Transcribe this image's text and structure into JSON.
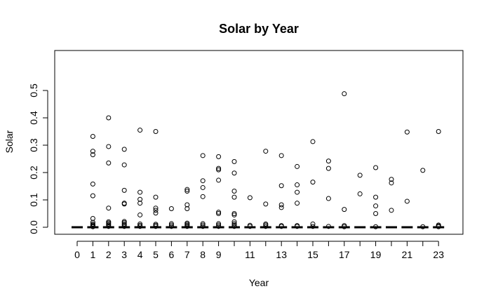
{
  "chart_data": {
    "type": "boxplot",
    "title": "Solar by Year",
    "xlabel": "Year",
    "ylabel": "Solar",
    "ylim": [
      0,
      0.5
    ],
    "yticks": [
      "0.0",
      "0.1",
      "0.2",
      "0.3",
      "0.4",
      "0.5"
    ],
    "categories": [
      "0",
      "1",
      "2",
      "3",
      "4",
      "5",
      "6",
      "7",
      "8",
      "9",
      "10",
      "11",
      "12",
      "13",
      "14",
      "15",
      "16",
      "17",
      "18",
      "19",
      "20",
      "21",
      "22",
      "23"
    ],
    "x_tick_labels_shown": [
      "0",
      "1",
      "2",
      "3",
      "4",
      "5",
      "6",
      "7",
      "8",
      "9",
      "11",
      "13",
      "15",
      "17",
      "19",
      "21",
      "23"
    ],
    "median": 0,
    "grid": false,
    "legend": "none",
    "outliers": [
      {
        "year": "1",
        "values": [
          0.002,
          0.005,
          0.008,
          0.012,
          0.018,
          0.032,
          0.115,
          0.158,
          0.265,
          0.278,
          0.332
        ]
      },
      {
        "year": "2",
        "values": [
          0.003,
          0.008,
          0.012,
          0.016,
          0.02,
          0.07,
          0.235,
          0.295,
          0.4
        ]
      },
      {
        "year": "3",
        "values": [
          0.003,
          0.008,
          0.012,
          0.017,
          0.021,
          0.085,
          0.088,
          0.135,
          0.228,
          0.285
        ]
      },
      {
        "year": "4",
        "values": [
          0.003,
          0.007,
          0.012,
          0.045,
          0.088,
          0.102,
          0.128,
          0.355
        ]
      },
      {
        "year": "5",
        "values": [
          0.003,
          0.007,
          0.011,
          0.052,
          0.062,
          0.07,
          0.11,
          0.35
        ]
      },
      {
        "year": "6",
        "values": [
          0.003,
          0.008,
          0.013,
          0.068
        ]
      },
      {
        "year": "7",
        "values": [
          0.003,
          0.007,
          0.011,
          0.015,
          0.068,
          0.082,
          0.132,
          0.138
        ]
      },
      {
        "year": "8",
        "values": [
          0.003,
          0.008,
          0.013,
          0.112,
          0.145,
          0.17,
          0.262
        ]
      },
      {
        "year": "9",
        "values": [
          0.003,
          0.008,
          0.013,
          0.05,
          0.055,
          0.172,
          0.21,
          0.215,
          0.258
        ]
      },
      {
        "year": "10",
        "values": [
          0.003,
          0.008,
          0.013,
          0.02,
          0.045,
          0.05,
          0.11,
          0.132,
          0.198,
          0.24
        ]
      },
      {
        "year": "11",
        "values": [
          0.003,
          0.007,
          0.108
        ]
      },
      {
        "year": "12",
        "values": [
          0.003,
          0.008,
          0.012,
          0.085,
          0.278
        ]
      },
      {
        "year": "13",
        "values": [
          0.003,
          0.006,
          0.072,
          0.082,
          0.152,
          0.262
        ]
      },
      {
        "year": "14",
        "values": [
          0.003,
          0.006,
          0.088,
          0.128,
          0.155,
          0.222
        ]
      },
      {
        "year": "15",
        "values": [
          0.003,
          0.012,
          0.165,
          0.313
        ]
      },
      {
        "year": "16",
        "values": [
          0.003,
          0.105,
          0.215,
          0.242
        ]
      },
      {
        "year": "17",
        "values": [
          0.002,
          0.006,
          0.065,
          0.488
        ]
      },
      {
        "year": "18",
        "values": [
          0.122,
          0.19
        ]
      },
      {
        "year": "19",
        "values": [
          0.002,
          0.05,
          0.078,
          0.11,
          0.218
        ]
      },
      {
        "year": "20",
        "values": [
          0.062,
          0.162,
          0.175
        ]
      },
      {
        "year": "21",
        "values": [
          0.095,
          0.348
        ]
      },
      {
        "year": "22",
        "values": [
          0.002,
          0.208
        ]
      },
      {
        "year": "23",
        "values": [
          0.002,
          0.005,
          0.008,
          0.35
        ]
      }
    ]
  }
}
